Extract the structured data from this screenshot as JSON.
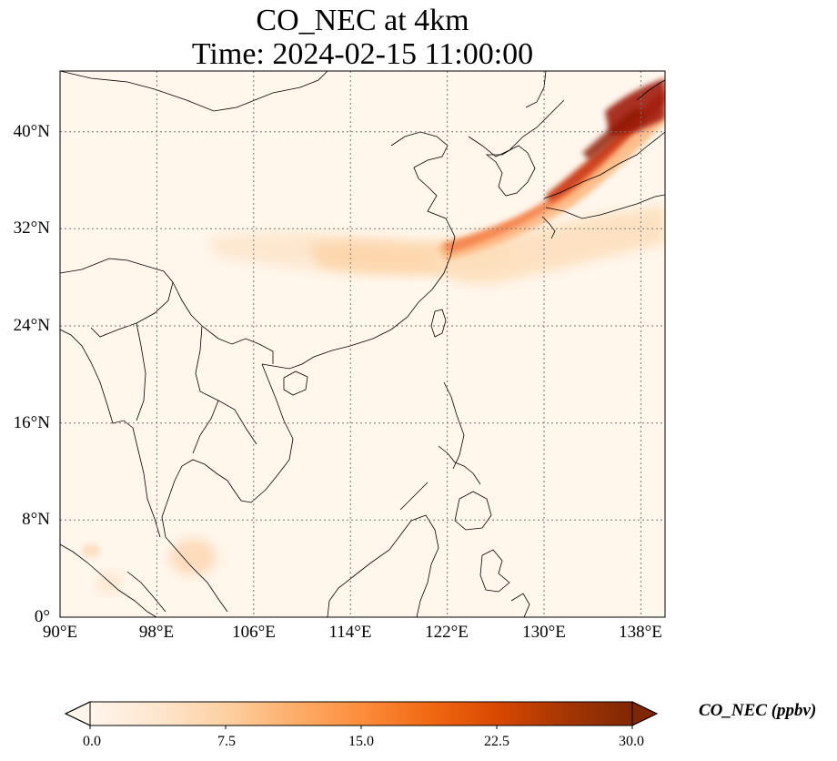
{
  "title": {
    "line1": "CO_NEC at 4km",
    "line2": "Time: 2024-02-15 11:00:00"
  },
  "map": {
    "extent": {
      "lon": [
        90,
        140
      ],
      "lat": [
        0,
        45
      ]
    },
    "longitude_labels": [
      "90°E",
      "98°E",
      "106°E",
      "114°E",
      "122°E",
      "130°E",
      "138°E"
    ],
    "latitude_labels": [
      "0°",
      "8°N",
      "16°N",
      "24°N",
      "32°N",
      "40°N"
    ],
    "gridlines": "dotted"
  },
  "colorbar": {
    "label": "CO_NEC (ppbv)",
    "tick_labels": [
      "0.0",
      "7.5",
      "15.0",
      "22.5",
      "30.0"
    ],
    "range": [
      0,
      30
    ],
    "extend": "both",
    "colors": [
      "#fff5eb",
      "#fee6ce",
      "#fdd0a2",
      "#fdae6b",
      "#fd8d3c",
      "#f16913",
      "#d94801",
      "#a63603",
      "#7f2704"
    ]
  }
}
